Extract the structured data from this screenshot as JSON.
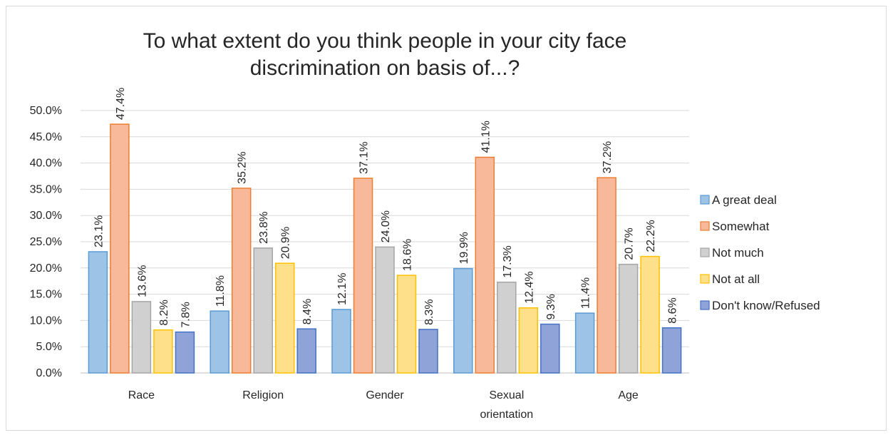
{
  "chart_data": {
    "type": "bar",
    "title_lines": [
      "To what extent do you think people in your city face",
      "discrimination on basis of...?"
    ],
    "categories": [
      [
        "Race"
      ],
      [
        "Religion"
      ],
      [
        "Gender"
      ],
      [
        "Sexual",
        "orientation"
      ],
      [
        "Age"
      ]
    ],
    "series": [
      {
        "name": "A great deal",
        "values": [
          23.1,
          11.8,
          12.1,
          19.9,
          11.4
        ],
        "color": "#9dc3e6",
        "stroke": "#5b9bd5"
      },
      {
        "name": "Somewhat",
        "values": [
          47.4,
          35.2,
          37.1,
          41.1,
          37.2
        ],
        "color": "#f8b99b",
        "stroke": "#ed7d31"
      },
      {
        "name": "Not much",
        "values": [
          13.6,
          23.8,
          24.0,
          17.3,
          20.7
        ],
        "color": "#d0d0d0",
        "stroke": "#a5a5a5"
      },
      {
        "name": "Not at all",
        "values": [
          8.2,
          20.9,
          18.6,
          12.4,
          22.2
        ],
        "color": "#ffe08a",
        "stroke": "#ffc000"
      },
      {
        "name": "Don't know/Refused",
        "values": [
          7.8,
          8.4,
          8.3,
          9.3,
          8.6
        ],
        "color": "#8fa3d9",
        "stroke": "#4472c4"
      }
    ],
    "ylim": [
      0,
      50
    ],
    "yticks": [
      "0.0%",
      "5.0%",
      "10.0%",
      "15.0%",
      "20.0%",
      "25.0%",
      "30.0%",
      "35.0%",
      "40.0%",
      "45.0%",
      "50.0%"
    ],
    "value_suffix": "%",
    "grid": true,
    "legend_position": "right"
  }
}
